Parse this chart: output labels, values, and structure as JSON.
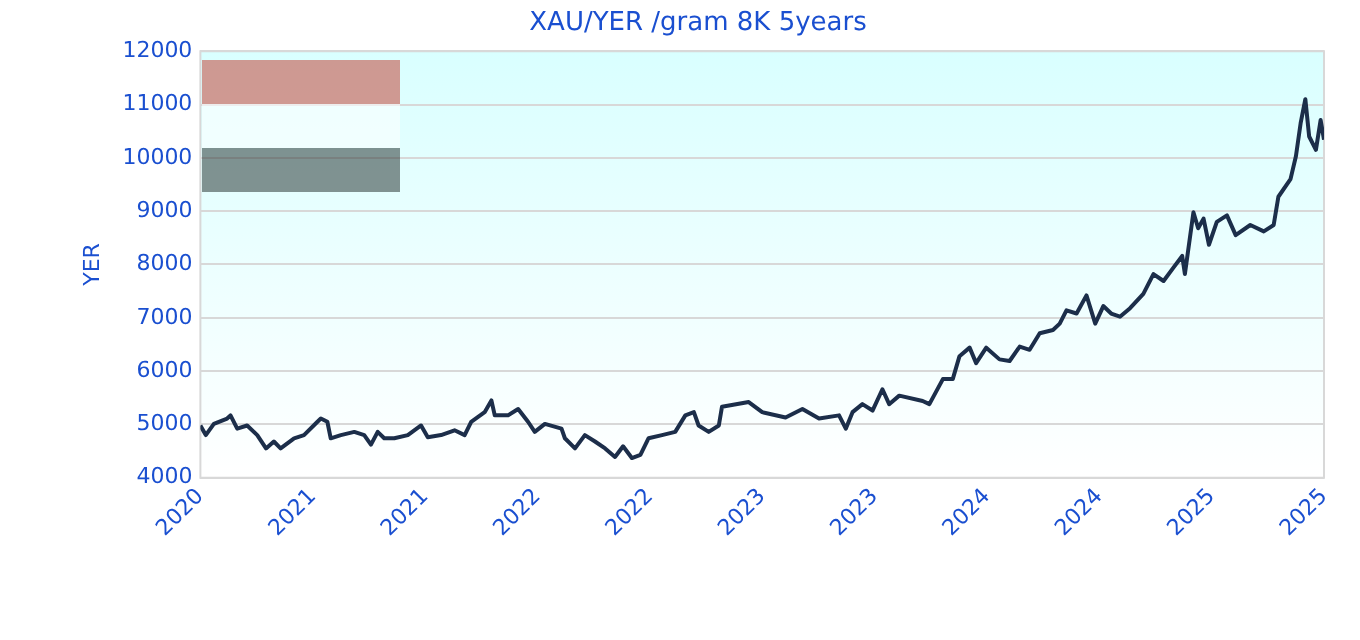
{
  "chart_data": {
    "type": "line",
    "title": "XAU/YER /gram 8K 5years",
    "ylabel": "YER",
    "x": [
      2020.5,
      2020.524,
      2020.56,
      2020.619,
      2020.634,
      2020.664,
      2020.708,
      2020.753,
      2020.792,
      2020.827,
      2020.857,
      2020.917,
      2020.961,
      2021.021,
      2021.036,
      2021.065,
      2021.08,
      2021.125,
      2021.185,
      2021.229,
      2021.259,
      2021.289,
      2021.318,
      2021.363,
      2021.423,
      2021.482,
      2021.512,
      2021.571,
      2021.631,
      2021.676,
      2021.705,
      2021.765,
      2021.795,
      2021.81,
      2021.869,
      2021.914,
      2021.958,
      2021.988,
      2022.033,
      2022.107,
      2022.122,
      2022.167,
      2022.211,
      2022.256,
      2022.301,
      2022.345,
      2022.381,
      2022.42,
      2022.458,
      2022.494,
      2022.554,
      2022.613,
      2022.658,
      2022.696,
      2022.717,
      2022.762,
      2022.807,
      2022.821,
      2022.94,
      2023.0,
      2023.104,
      2023.179,
      2023.253,
      2023.342,
      2023.372,
      2023.402,
      2023.446,
      2023.491,
      2023.535,
      2023.565,
      2023.61,
      2023.714,
      2023.744,
      2023.804,
      2023.848,
      2023.878,
      2023.923,
      2023.952,
      2023.997,
      2024.056,
      2024.101,
      2024.146,
      2024.19,
      2024.235,
      2024.294,
      2024.324,
      2024.354,
      2024.399,
      2024.443,
      2024.482,
      2024.518,
      2024.553,
      2024.592,
      2024.637,
      2024.696,
      2024.741,
      2024.786,
      2024.83,
      2024.869,
      2024.881,
      2024.919,
      2024.94,
      2024.964,
      2024.988,
      2025.023,
      2025.068,
      2025.107,
      2025.172,
      2025.232,
      2025.276,
      2025.297,
      2025.351,
      2025.375,
      2025.396,
      2025.417,
      2025.434,
      2025.464,
      2025.485,
      2025.5
    ],
    "series": [
      {
        "color": "#1c2e4a",
        "values": [
          4980,
          4800,
          5010,
          5110,
          5170,
          4920,
          4980,
          4800,
          4550,
          4680,
          4550,
          4740,
          4800,
          5050,
          5110,
          5050,
          4740,
          4800,
          4860,
          4800,
          4620,
          4860,
          4740,
          4740,
          4800,
          4980,
          4760,
          4800,
          4890,
          4800,
          5050,
          5230,
          5450,
          5170,
          5170,
          5290,
          5050,
          4860,
          5010,
          4920,
          4740,
          4550,
          4800,
          4680,
          4550,
          4390,
          4590,
          4370,
          4430,
          4740,
          4800,
          4860,
          5170,
          5230,
          4980,
          4860,
          4980,
          5330,
          5420,
          5230,
          5130,
          5290,
          5110,
          5170,
          4920,
          5230,
          5380,
          5260,
          5660,
          5380,
          5540,
          5440,
          5380,
          5850,
          5850,
          6280,
          6440,
          6150,
          6440,
          6220,
          6190,
          6460,
          6400,
          6710,
          6770,
          6890,
          7140,
          7080,
          7420,
          6890,
          7220,
          7080,
          7020,
          7180,
          7450,
          7820,
          7690,
          7940,
          8160,
          7820,
          8980,
          8680,
          8860,
          8370,
          8800,
          8920,
          8550,
          8740,
          8620,
          8740,
          9270,
          9600,
          10030,
          10650,
          11100,
          10400,
          10150,
          10710,
          10340
        ]
      }
    ],
    "xlim": [
      2020.5,
      2025.5
    ],
    "xticks": [
      {
        "value": 2020.5,
        "label": "2020"
      },
      {
        "value": 2021,
        "label": "2021"
      },
      {
        "value": 2021.5,
        "label": "2021"
      },
      {
        "value": 2022,
        "label": "2022"
      },
      {
        "value": 2022.5,
        "label": "2022"
      },
      {
        "value": 2023,
        "label": "2023"
      },
      {
        "value": 2023.5,
        "label": "2023"
      },
      {
        "value": 2024,
        "label": "2024"
      },
      {
        "value": 2024.5,
        "label": "2024"
      },
      {
        "value": 2025,
        "label": "2025"
      },
      {
        "value": 2025.5,
        "label": "2025"
      }
    ],
    "ylim": [
      4000,
      12000
    ],
    "yticks": [
      4000,
      5000,
      6000,
      7000,
      8000,
      9000,
      10000,
      11000,
      12000
    ],
    "grid": "y",
    "legend": false,
    "marker": "none",
    "line_style": "solid"
  }
}
